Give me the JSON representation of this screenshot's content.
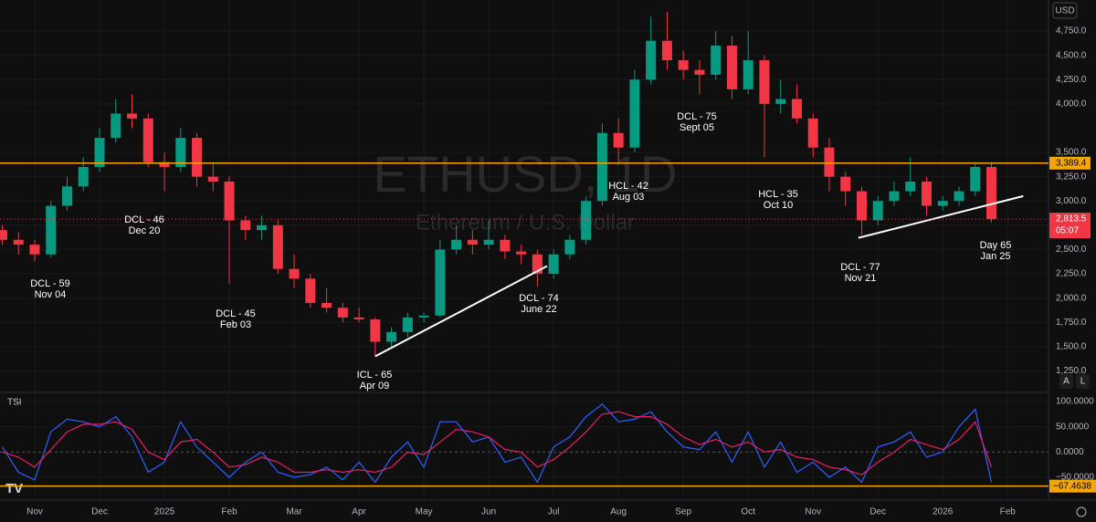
{
  "chart_data": {
    "type": "candlestick",
    "symbol_title": "ETHUSD, 1D",
    "symbol_subtitle": "Ethereum / U.S. Dollar",
    "currency": "USD",
    "scale_buttons": [
      "A",
      "L"
    ],
    "indicator_title": "TSI",
    "x": [
      -0.5,
      -0.25,
      0,
      0.25,
      0.5,
      0.75,
      1,
      1.25,
      1.5,
      1.75,
      2,
      2.25,
      2.5,
      2.75,
      3,
      3.25,
      3.5,
      3.75,
      4,
      4.25,
      4.5,
      4.75,
      5,
      5.25,
      5.5,
      5.75,
      6,
      6.25,
      6.5,
      6.75,
      7,
      7.25,
      7.5,
      7.75,
      8,
      8.25,
      8.5,
      8.75,
      9,
      9.25,
      9.5,
      9.75,
      10,
      10.25,
      10.5,
      10.75,
      11,
      11.25,
      11.5,
      11.75,
      12,
      12.25,
      12.5,
      12.75,
      13,
      13.25,
      13.5,
      13.75,
      14,
      14.25,
      14.5,
      14.75
    ],
    "candles": [
      [
        2700,
        2750,
        2550,
        2600
      ],
      [
        2600,
        2680,
        2450,
        2550
      ],
      [
        2550,
        2600,
        2380,
        2450
      ],
      [
        2450,
        3000,
        2420,
        2950
      ],
      [
        2950,
        3250,
        2900,
        3150
      ],
      [
        3150,
        3450,
        3100,
        3350
      ],
      [
        3350,
        3750,
        3300,
        3650
      ],
      [
        3650,
        4050,
        3600,
        3900
      ],
      [
        3900,
        4100,
        3750,
        3850
      ],
      [
        3850,
        3900,
        3350,
        3400
      ],
      [
        3400,
        3500,
        3100,
        3350
      ],
      [
        3350,
        3750,
        3300,
        3650
      ],
      [
        3650,
        3700,
        3150,
        3250
      ],
      [
        3250,
        3400,
        3100,
        3200
      ],
      [
        3200,
        3250,
        2150,
        2800
      ],
      [
        2800,
        2850,
        2600,
        2700
      ],
      [
        2700,
        2850,
        2600,
        2750
      ],
      [
        2750,
        2800,
        2250,
        2300
      ],
      [
        2300,
        2450,
        2100,
        2200
      ],
      [
        2200,
        2250,
        1900,
        1950
      ],
      [
        1950,
        2100,
        1850,
        1900
      ],
      [
        1900,
        1950,
        1750,
        1800
      ],
      [
        1800,
        1900,
        1750,
        1780
      ],
      [
        1780,
        1800,
        1400,
        1550
      ],
      [
        1550,
        1700,
        1500,
        1650
      ],
      [
        1650,
        1850,
        1600,
        1800
      ],
      [
        1800,
        1850,
        1750,
        1820
      ],
      [
        1820,
        2600,
        1800,
        2500
      ],
      [
        2500,
        2750,
        2450,
        2600
      ],
      [
        2600,
        2700,
        2450,
        2550
      ],
      [
        2550,
        2800,
        2500,
        2600
      ],
      [
        2600,
        2650,
        2400,
        2480
      ],
      [
        2480,
        2550,
        2350,
        2450
      ],
      [
        2450,
        2500,
        2120,
        2250
      ],
      [
        2250,
        2500,
        2200,
        2450
      ],
      [
        2450,
        2650,
        2400,
        2600
      ],
      [
        2600,
        3050,
        2550,
        3000
      ],
      [
        3000,
        3800,
        2950,
        3700
      ],
      [
        3700,
        3850,
        3400,
        3550
      ],
      [
        3550,
        4350,
        3500,
        4250
      ],
      [
        4250,
        4900,
        4200,
        4650
      ],
      [
        4650,
        4950,
        4350,
        4450
      ],
      [
        4450,
        4550,
        4250,
        4350
      ],
      [
        4350,
        4450,
        4100,
        4300
      ],
      [
        4300,
        4750,
        4250,
        4600
      ],
      [
        4600,
        4700,
        4050,
        4150
      ],
      [
        4150,
        4750,
        4100,
        4450
      ],
      [
        4450,
        4500,
        3450,
        4000
      ],
      [
        4000,
        4250,
        3900,
        4050
      ],
      [
        4050,
        4200,
        3800,
        3850
      ],
      [
        3850,
        3900,
        3450,
        3550
      ],
      [
        3550,
        3650,
        3100,
        3250
      ],
      [
        3250,
        3300,
        2950,
        3100
      ],
      [
        3100,
        3150,
        2650,
        2800
      ],
      [
        2800,
        3050,
        2750,
        3000
      ],
      [
        3000,
        3200,
        2950,
        3100
      ],
      [
        3100,
        3450,
        3050,
        3200
      ],
      [
        3200,
        3250,
        2850,
        2950
      ],
      [
        2950,
        3050,
        2900,
        3000
      ],
      [
        3000,
        3150,
        2950,
        3100
      ],
      [
        3100,
        3400,
        3050,
        3350
      ],
      [
        3350,
        3400,
        2780,
        2813.5
      ]
    ],
    "up_color": "#089981",
    "down_color": "#f23645",
    "xlim": [
      -0.535,
      15.63
    ],
    "xticks": [
      {
        "value": 0,
        "label": "Nov"
      },
      {
        "value": 1,
        "label": "Dec"
      },
      {
        "value": 2,
        "label": "2025"
      },
      {
        "value": 3,
        "label": "Feb"
      },
      {
        "value": 4,
        "label": "Mar"
      },
      {
        "value": 5,
        "label": "Apr"
      },
      {
        "value": 6,
        "label": "May"
      },
      {
        "value": 7,
        "label": "Jun"
      },
      {
        "value": 8,
        "label": "Jul"
      },
      {
        "value": 9,
        "label": "Aug"
      },
      {
        "value": 10,
        "label": "Sep"
      },
      {
        "value": 11,
        "label": "Oct"
      },
      {
        "value": 12,
        "label": "Nov"
      },
      {
        "value": 13,
        "label": "Dec"
      },
      {
        "value": 14,
        "label": "2026"
      },
      {
        "value": 15,
        "label": "Feb"
      }
    ],
    "ylim": [
      1047,
      5070
    ],
    "yticks": [
      {
        "value": 1250,
        "label": "1,250.0"
      },
      {
        "value": 1500,
        "label": "1,500.0"
      },
      {
        "value": 1750,
        "label": "1,750.0"
      },
      {
        "value": 2000,
        "label": "2,000.0"
      },
      {
        "value": 2250,
        "label": "2,250.0"
      },
      {
        "value": 2500,
        "label": "2,500.0"
      },
      {
        "value": 2750,
        "label": "2,750.0"
      },
      {
        "value": 3000,
        "label": "3,000.0"
      },
      {
        "value": 3250,
        "label": "3,250.0"
      },
      {
        "value": 3500,
        "label": "3,500.0"
      },
      {
        "value": 4000,
        "label": "4,000.0"
      },
      {
        "value": 4250,
        "label": "4,250.0"
      },
      {
        "value": 4500,
        "label": "4,500.0"
      },
      {
        "value": 4750,
        "label": "4,750.0"
      }
    ],
    "resistance": {
      "value": 3389.4,
      "label": "3,389.4",
      "color": "#f7a600"
    },
    "price_line": {
      "value": 2813.5,
      "label": "2,813.5",
      "countdown": "05:07",
      "color": "#f23645"
    },
    "trendlines": [
      [
        [
          5.25,
          1400
        ],
        [
          7.9,
          2330
        ]
      ],
      [
        [
          12.7,
          2620
        ],
        [
          15.24,
          3050
        ]
      ]
    ],
    "annotations": [
      {
        "text": "DCL - 59",
        "date": "Nov 04"
      },
      {
        "text": "DCL - 46",
        "date": "Dec 20"
      },
      {
        "text": "DCL - 45",
        "date": "Feb 03"
      },
      {
        "text": "ICL - 65",
        "date": "Apr 09"
      },
      {
        "text": "DCL - 74",
        "date": "June 22"
      },
      {
        "text": "HCL - 42",
        "date": "Aug 03"
      },
      {
        "text": "DCL - 75",
        "date": "Sept 05"
      },
      {
        "text": "HCL - 35",
        "date": "Oct 10"
      },
      {
        "text": "DCL - 77",
        "date": "Nov 21"
      },
      {
        "text": "Day 65",
        "date": "Jan 25"
      }
    ],
    "tsi": {
      "ylim": [
        -80.7,
        114.5
      ],
      "yticks": [
        {
          "value": 100,
          "label": "100.0000"
        },
        {
          "value": 50,
          "label": "50.0000"
        },
        {
          "value": 0,
          "label": "0.0000"
        },
        {
          "value": -50,
          "label": "−50.0000"
        }
      ],
      "level": {
        "value": -67.4638,
        "label": "−67.4638",
        "color": "#f7a600"
      },
      "series": [
        {
          "color": "#2962ff",
          "values": [
            10,
            -40,
            -55,
            40,
            65,
            60,
            50,
            70,
            30,
            -40,
            -20,
            60,
            10,
            -20,
            -50,
            -20,
            0,
            -40,
            -50,
            -45,
            -30,
            -55,
            -20,
            -60,
            -10,
            20,
            -30,
            60,
            60,
            20,
            30,
            -20,
            -10,
            -60,
            10,
            30,
            70,
            95,
            60,
            65,
            80,
            40,
            10,
            5,
            40,
            -20,
            40,
            -30,
            20,
            -40,
            -20,
            -50,
            -30,
            -60,
            10,
            20,
            40,
            -10,
            0,
            50,
            85,
            -60
          ]
        },
        {
          "color": "#e91e63",
          "values": [
            0,
            -10,
            -30,
            5,
            40,
            55,
            55,
            60,
            45,
            0,
            -15,
            20,
            25,
            0,
            -30,
            -25,
            -10,
            -20,
            -40,
            -40,
            -35,
            -40,
            -35,
            -40,
            -30,
            0,
            -5,
            20,
            45,
            40,
            30,
            5,
            0,
            -30,
            -15,
            10,
            40,
            75,
            80,
            70,
            70,
            55,
            30,
            15,
            25,
            10,
            20,
            0,
            5,
            -10,
            -15,
            -30,
            -35,
            -45,
            -20,
            0,
            25,
            15,
            5,
            25,
            60,
            -30
          ]
        }
      ]
    }
  }
}
